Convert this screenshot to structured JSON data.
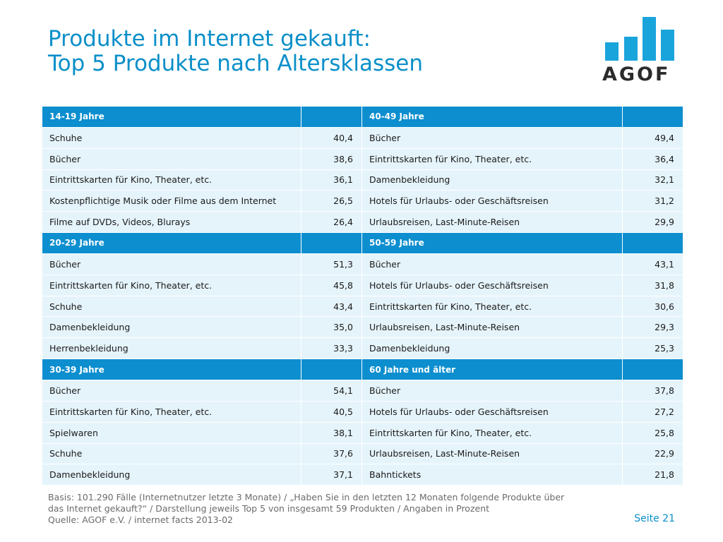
{
  "title": {
    "line1": "Produkte im Internet gekauft:",
    "line2": "Top 5 Produkte nach Altersklassen"
  },
  "logo": {
    "text": "AGOF",
    "icon": "bar-chart-logo-icon",
    "color": "#1aa4dc"
  },
  "colors": {
    "header": "#0c8ecf",
    "row": "#e5f4fb",
    "title": "#0a8fc9"
  },
  "table": {
    "rows": [
      {
        "type": "head",
        "left_label": "14-19 Jahre",
        "left_value": "",
        "right_label": "40-49 Jahre",
        "right_value": ""
      },
      {
        "type": "data",
        "left_label": "Schuhe",
        "left_value": "40,4",
        "right_label": "Bücher",
        "right_value": "49,4"
      },
      {
        "type": "data",
        "left_label": "Bücher",
        "left_value": "38,6",
        "right_label": "Eintrittskarten für Kino, Theater, etc.",
        "right_value": "36,4"
      },
      {
        "type": "data",
        "left_label": "Eintrittskarten für Kino, Theater, etc.",
        "left_value": "36,1",
        "right_label": "Damenbekleidung",
        "right_value": "32,1"
      },
      {
        "type": "data",
        "left_label": "Kostenpflichtige Musik oder Filme aus dem Internet",
        "left_value": "26,5",
        "right_label": "Hotels für Urlaubs- oder Geschäftsreisen",
        "right_value": "31,2"
      },
      {
        "type": "data",
        "left_label": "Filme auf DVDs, Videos, Blurays",
        "left_value": "26,4",
        "right_label": "Urlaubsreisen, Last-Minute-Reisen",
        "right_value": "29,9"
      },
      {
        "type": "head",
        "left_label": "20-29 Jahre",
        "left_value": "",
        "right_label": "50-59 Jahre",
        "right_value": ""
      },
      {
        "type": "data",
        "left_label": "Bücher",
        "left_value": "51,3",
        "right_label": "Bücher",
        "right_value": "43,1"
      },
      {
        "type": "data",
        "left_label": "Eintrittskarten für Kino, Theater, etc.",
        "left_value": "45,8",
        "right_label": "Hotels für Urlaubs- oder Geschäftsreisen",
        "right_value": "31,8"
      },
      {
        "type": "data",
        "left_label": "Schuhe",
        "left_value": "43,4",
        "right_label": "Eintrittskarten für Kino, Theater, etc.",
        "right_value": "30,6"
      },
      {
        "type": "data",
        "left_label": "Damenbekleidung",
        "left_value": "35,0",
        "right_label": "Urlaubsreisen, Last-Minute-Reisen",
        "right_value": "29,3"
      },
      {
        "type": "data",
        "left_label": "Herrenbekleidung",
        "left_value": "33,3",
        "right_label": "Damenbekleidung",
        "right_value": "25,3"
      },
      {
        "type": "head",
        "left_label": "30-39 Jahre",
        "left_value": "",
        "right_label": "60 Jahre und älter",
        "right_value": ""
      },
      {
        "type": "data",
        "left_label": "Bücher",
        "left_value": "54,1",
        "right_label": "Bücher",
        "right_value": "37,8"
      },
      {
        "type": "data",
        "left_label": "Eintrittskarten für Kino, Theater, etc.",
        "left_value": "40,5",
        "right_label": "Hotels für Urlaubs- oder Geschäftsreisen",
        "right_value": "27,2"
      },
      {
        "type": "data",
        "left_label": "Spielwaren",
        "left_value": "38,1",
        "right_label": "Eintrittskarten für Kino, Theater, etc.",
        "right_value": "25,8"
      },
      {
        "type": "data",
        "left_label": "Schuhe",
        "left_value": "37,6",
        "right_label": "Urlaubsreisen, Last-Minute-Reisen",
        "right_value": "22,9"
      },
      {
        "type": "data",
        "left_label": "Damenbekleidung",
        "left_value": "37,1",
        "right_label": "Bahntickets",
        "right_value": "21,8"
      }
    ]
  },
  "footnote": {
    "line1": "Basis: 101.290 Fälle (Internetnutzer letzte 3 Monate) / „Haben Sie in den letzten 12 Monaten folgende Produkte über",
    "line2": "das Internet gekauft?“ / Darstellung jeweils Top 5 von insgesamt 59 Produkten / Angaben in Prozent",
    "line3": "Quelle: AGOF e.V. / internet facts 2013-02"
  },
  "page_number": "Seite 21"
}
